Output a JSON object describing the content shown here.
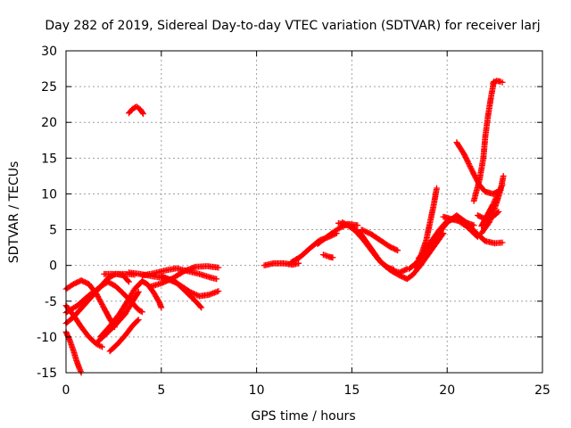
{
  "chart_data": {
    "type": "scatter",
    "title": "Day 282 of 2019, Sidereal Day-to-day VTEC variation (SDTVAR) for receiver larj",
    "xlabel": "GPS time / hours",
    "ylabel": "SDTVAR / TECUs",
    "xlim": [
      0,
      25
    ],
    "ylim": [
      -15,
      30
    ],
    "xticks": [
      "0",
      "5",
      "10",
      "15",
      "20",
      "25"
    ],
    "yticks": [
      "-15",
      "-10",
      "-5",
      "0",
      "5",
      "10",
      "15",
      "20",
      "25",
      "30"
    ],
    "grid": true,
    "legend": false,
    "marker": "+",
    "series_color": "#ff0000",
    "traces": [
      [
        [
          0.0,
          -9.3
        ],
        [
          0.2,
          -10.5
        ],
        [
          0.4,
          -12
        ],
        [
          0.55,
          -13.3
        ],
        [
          0.7,
          -14.4
        ],
        [
          0.8,
          -15
        ]
      ],
      [
        [
          0.0,
          -5.6
        ],
        [
          0.4,
          -7
        ],
        [
          0.8,
          -8.6
        ],
        [
          1.2,
          -10
        ],
        [
          1.6,
          -11
        ],
        [
          1.9,
          -11.4
        ]
      ],
      [
        [
          0.0,
          -3.3
        ],
        [
          0.4,
          -2.6
        ],
        [
          0.8,
          -2.1
        ],
        [
          1.2,
          -2.6
        ],
        [
          1.6,
          -4
        ],
        [
          2.0,
          -6
        ],
        [
          2.3,
          -7.5
        ],
        [
          2.55,
          -8.6
        ]
      ],
      [
        [
          0.0,
          -8.1
        ],
        [
          0.4,
          -7.2
        ],
        [
          0.8,
          -6
        ],
        [
          1.3,
          -4.5
        ],
        [
          1.8,
          -3
        ],
        [
          2.2,
          -1.8
        ],
        [
          2.6,
          -1.2
        ],
        [
          3.0,
          -1.4
        ],
        [
          3.3,
          -2.3
        ]
      ],
      [
        [
          0.0,
          -6.6
        ],
        [
          0.6,
          -5.6
        ],
        [
          1.2,
          -4.2
        ],
        [
          1.8,
          -3
        ],
        [
          2.2,
          -2.3
        ],
        [
          2.6,
          -2.9
        ],
        [
          3.0,
          -3.9
        ],
        [
          3.4,
          -5
        ],
        [
          3.8,
          -6.2
        ],
        [
          4.0,
          -6.5
        ]
      ],
      [
        [
          1.8,
          -10
        ],
        [
          2.3,
          -8.5
        ],
        [
          2.8,
          -6.8
        ],
        [
          3.2,
          -5.1
        ],
        [
          3.6,
          -3.3
        ],
        [
          4.0,
          -2.2
        ],
        [
          4.3,
          -2.7
        ],
        [
          4.6,
          -3.8
        ],
        [
          4.9,
          -5.2
        ],
        [
          5.0,
          -5.9
        ]
      ],
      [
        [
          1.65,
          -10.7
        ],
        [
          2.1,
          -9.6
        ],
        [
          2.6,
          -8.3
        ],
        [
          3.1,
          -6.8
        ],
        [
          3.5,
          -5
        ],
        [
          3.8,
          -3.7
        ]
      ],
      [
        [
          2.3,
          -12
        ],
        [
          2.7,
          -11
        ],
        [
          3.1,
          -9.8
        ],
        [
          3.5,
          -8.4
        ],
        [
          3.8,
          -7.6
        ]
      ],
      [
        [
          2.0,
          -1.2
        ],
        [
          2.6,
          -1.2
        ],
        [
          3.2,
          -1.2
        ],
        [
          3.6,
          -1.3
        ]
      ],
      [
        [
          3.3,
          -1
        ],
        [
          3.9,
          -1.2
        ],
        [
          4.5,
          -1.5
        ],
        [
          5.2,
          -1.8
        ],
        [
          5.8,
          -2.4
        ],
        [
          6.3,
          -3.7
        ],
        [
          6.8,
          -5
        ],
        [
          7.1,
          -5.9
        ]
      ],
      [
        [
          4.0,
          -1.4
        ],
        [
          4.6,
          -1.1
        ],
        [
          5.2,
          -0.7
        ],
        [
          5.8,
          -0.4
        ],
        [
          6.4,
          -0.8
        ],
        [
          7.0,
          -1.2
        ],
        [
          7.6,
          -1.7
        ],
        [
          7.9,
          -1.9
        ]
      ],
      [
        [
          4.4,
          -3
        ],
        [
          5.0,
          -2.5
        ],
        [
          5.6,
          -1.8
        ],
        [
          6.2,
          -0.8
        ],
        [
          6.8,
          -0.2
        ],
        [
          7.4,
          -0.1
        ],
        [
          8.0,
          -0.3
        ]
      ],
      [
        [
          5.0,
          -1.5
        ],
        [
          5.5,
          -2
        ],
        [
          6.0,
          -2.8
        ],
        [
          6.5,
          -3.7
        ],
        [
          7.0,
          -4.3
        ],
        [
          7.5,
          -4.1
        ],
        [
          8.0,
          -3.6
        ]
      ],
      [
        [
          3.3,
          21.3
        ],
        [
          3.5,
          21.9
        ],
        [
          3.7,
          22.2
        ],
        [
          3.9,
          21.8
        ],
        [
          4.05,
          21.2
        ]
      ],
      [
        [
          10.4,
          0
        ],
        [
          10.9,
          0.3
        ],
        [
          11.4,
          0.3
        ],
        [
          11.9,
          0.1
        ],
        [
          12.2,
          0.3
        ]
      ],
      [
        [
          11.8,
          0.4
        ],
        [
          12.3,
          1.2
        ],
        [
          12.8,
          2.4
        ],
        [
          13.3,
          3.5
        ],
        [
          13.8,
          4
        ],
        [
          14.2,
          4.5
        ]
      ],
      [
        [
          13.2,
          3
        ],
        [
          13.6,
          3.8
        ],
        [
          14.0,
          4.6
        ],
        [
          14.4,
          5.3
        ],
        [
          14.8,
          5.8
        ],
        [
          15.3,
          5.6
        ]
      ],
      [
        [
          13.5,
          1.5
        ],
        [
          13.8,
          1.2
        ],
        [
          14.0,
          1.1
        ]
      ],
      [
        [
          14.3,
          5.9
        ],
        [
          14.8,
          5.6
        ],
        [
          15.2,
          4.8
        ],
        [
          15.6,
          3.6
        ],
        [
          16.0,
          2.2
        ],
        [
          16.4,
          0.8
        ],
        [
          16.8,
          -0.2
        ],
        [
          17.2,
          -0.6
        ]
      ],
      [
        [
          14.5,
          6
        ],
        [
          15.0,
          5.4
        ],
        [
          15.5,
          4.3
        ],
        [
          16.0,
          2.4
        ],
        [
          16.5,
          0.5
        ],
        [
          17.0,
          -0.6
        ],
        [
          17.5,
          -1
        ],
        [
          17.9,
          -0.5
        ]
      ],
      [
        [
          15.5,
          5
        ],
        [
          16.0,
          4.4
        ],
        [
          16.5,
          3.5
        ],
        [
          17.0,
          2.6
        ],
        [
          17.4,
          2.1
        ]
      ],
      [
        [
          16.7,
          0.1
        ],
        [
          17.1,
          -0.8
        ],
        [
          17.5,
          -1.4
        ],
        [
          17.9,
          -1.9
        ],
        [
          18.2,
          -1.3
        ],
        [
          18.6,
          0
        ],
        [
          19.0,
          1.5
        ],
        [
          19.4,
          3
        ],
        [
          19.8,
          4.5
        ]
      ],
      [
        [
          18.0,
          -0.5
        ],
        [
          18.4,
          0.4
        ],
        [
          18.8,
          1.8
        ],
        [
          19.2,
          3.5
        ],
        [
          19.6,
          5
        ],
        [
          20.0,
          6.2
        ],
        [
          20.5,
          6.6
        ],
        [
          21.0,
          6
        ],
        [
          21.4,
          5.6
        ]
      ],
      [
        [
          18.3,
          -0.3
        ],
        [
          18.6,
          1.2
        ],
        [
          18.9,
          3.5
        ],
        [
          19.1,
          6
        ],
        [
          19.3,
          8.5
        ],
        [
          19.45,
          10.8
        ]
      ],
      [
        [
          18.5,
          1
        ],
        [
          19.0,
          2.5
        ],
        [
          19.5,
          4.3
        ],
        [
          20.0,
          6
        ],
        [
          20.5,
          7
        ],
        [
          21.0,
          6
        ],
        [
          21.5,
          4.6
        ],
        [
          22.0,
          3.4
        ],
        [
          22.5,
          3.1
        ],
        [
          22.9,
          3.2
        ]
      ],
      [
        [
          19.8,
          6.8
        ],
        [
          20.2,
          6.5
        ],
        [
          20.6,
          6.2
        ],
        [
          21.0,
          5.5
        ],
        [
          21.4,
          4.5
        ],
        [
          21.6,
          4
        ]
      ],
      [
        [
          20.5,
          17.2
        ],
        [
          20.9,
          15.5
        ],
        [
          21.3,
          13.3
        ],
        [
          21.7,
          11.2
        ],
        [
          22.0,
          10.3
        ],
        [
          22.4,
          10
        ],
        [
          22.8,
          10.5
        ]
      ],
      [
        [
          21.4,
          9
        ],
        [
          21.7,
          12
        ],
        [
          21.9,
          15
        ],
        [
          22.0,
          18
        ],
        [
          22.15,
          21
        ],
        [
          22.3,
          23.5
        ],
        [
          22.45,
          25.7
        ]
      ],
      [
        [
          22.4,
          25.5
        ],
        [
          22.6,
          25.8
        ],
        [
          22.8,
          25.7
        ],
        [
          22.9,
          25.6
        ]
      ],
      [
        [
          21.6,
          7
        ],
        [
          22.0,
          6.5
        ],
        [
          22.4,
          6.8
        ],
        [
          22.7,
          7.5
        ]
      ],
      [
        [
          21.8,
          4.5
        ],
        [
          22.2,
          6
        ],
        [
          22.5,
          8
        ],
        [
          22.8,
          10.5
        ],
        [
          22.95,
          12.5
        ]
      ],
      [
        [
          21.8,
          5.5
        ],
        [
          22.1,
          7
        ],
        [
          22.4,
          8.5
        ],
        [
          22.7,
          10.2
        ],
        [
          22.9,
          11.3
        ]
      ]
    ]
  }
}
